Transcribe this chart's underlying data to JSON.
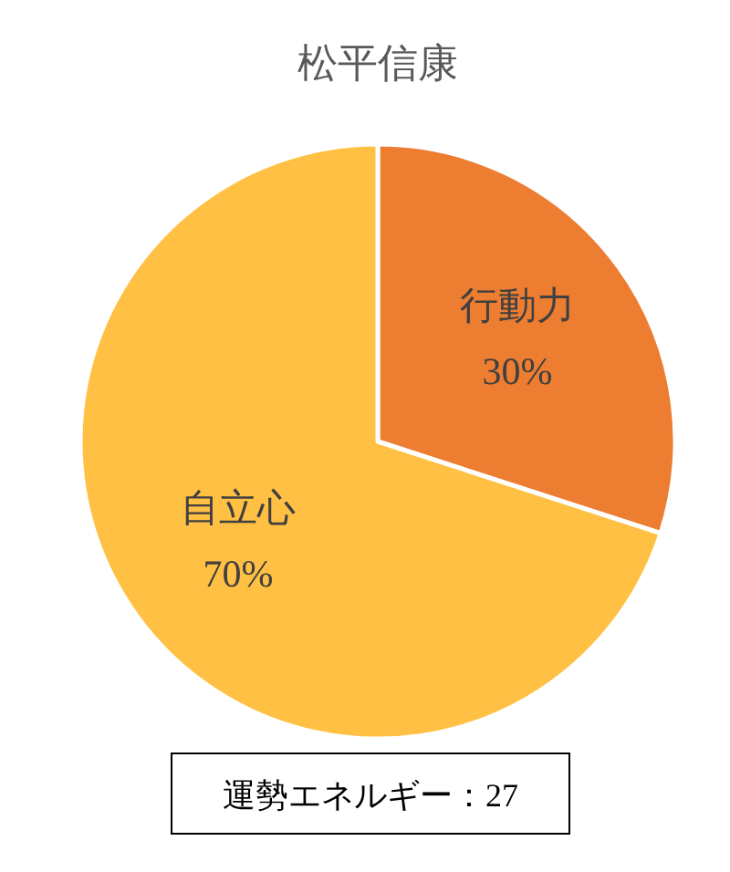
{
  "chart_data": {
    "type": "pie",
    "title": "松平信康",
    "categories": [
      "行動力",
      "自立心"
    ],
    "values": [
      30,
      70
    ],
    "colors": [
      "#ed7d31",
      "#ffc044"
    ],
    "value_labels": [
      "30%",
      "70%"
    ],
    "annotations": [
      "運勢エネルギー：27"
    ]
  }
}
